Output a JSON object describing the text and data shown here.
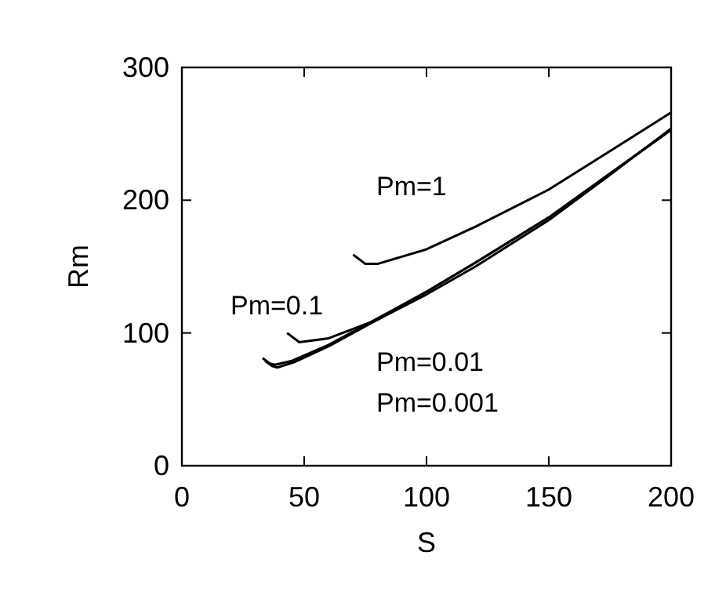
{
  "chart_data": {
    "type": "line",
    "xlabel": "S",
    "ylabel": "Rm",
    "xlim": [
      0,
      200
    ],
    "ylim": [
      0,
      300
    ],
    "xticks": [
      0,
      50,
      100,
      150,
      200
    ],
    "yticks": [
      0,
      100,
      200,
      300
    ],
    "grid": false,
    "marker": "none",
    "line_style": "solid",
    "series": [
      {
        "name": "Pm=1",
        "color": "#000000",
        "x": [
          70,
          75,
          80,
          100,
          120,
          150,
          175,
          200
        ],
        "values": [
          159,
          152,
          152,
          163,
          180,
          208,
          237,
          266
        ]
      },
      {
        "name": "Pm=0.1",
        "color": "#000000",
        "x": [
          43,
          48,
          60,
          80,
          100,
          120,
          150,
          175,
          200
        ],
        "values": [
          100,
          93,
          96,
          110,
          129,
          150,
          185,
          219,
          254
        ]
      },
      {
        "name": "Pm=0.01",
        "color": "#000000",
        "x": [
          33,
          36,
          38,
          45,
          60,
          80,
          100,
          120,
          150,
          175,
          200
        ],
        "values": [
          81,
          77,
          76,
          79,
          91,
          111,
          131,
          153,
          187,
          220,
          253
        ]
      },
      {
        "name": "Pm=0.001",
        "color": "#000000",
        "x": [
          34,
          37,
          39,
          46,
          60,
          80,
          100,
          120,
          150,
          175,
          200
        ],
        "values": [
          79,
          75,
          74,
          78,
          90,
          110,
          131,
          153,
          187,
          220,
          253
        ]
      }
    ]
  }
}
